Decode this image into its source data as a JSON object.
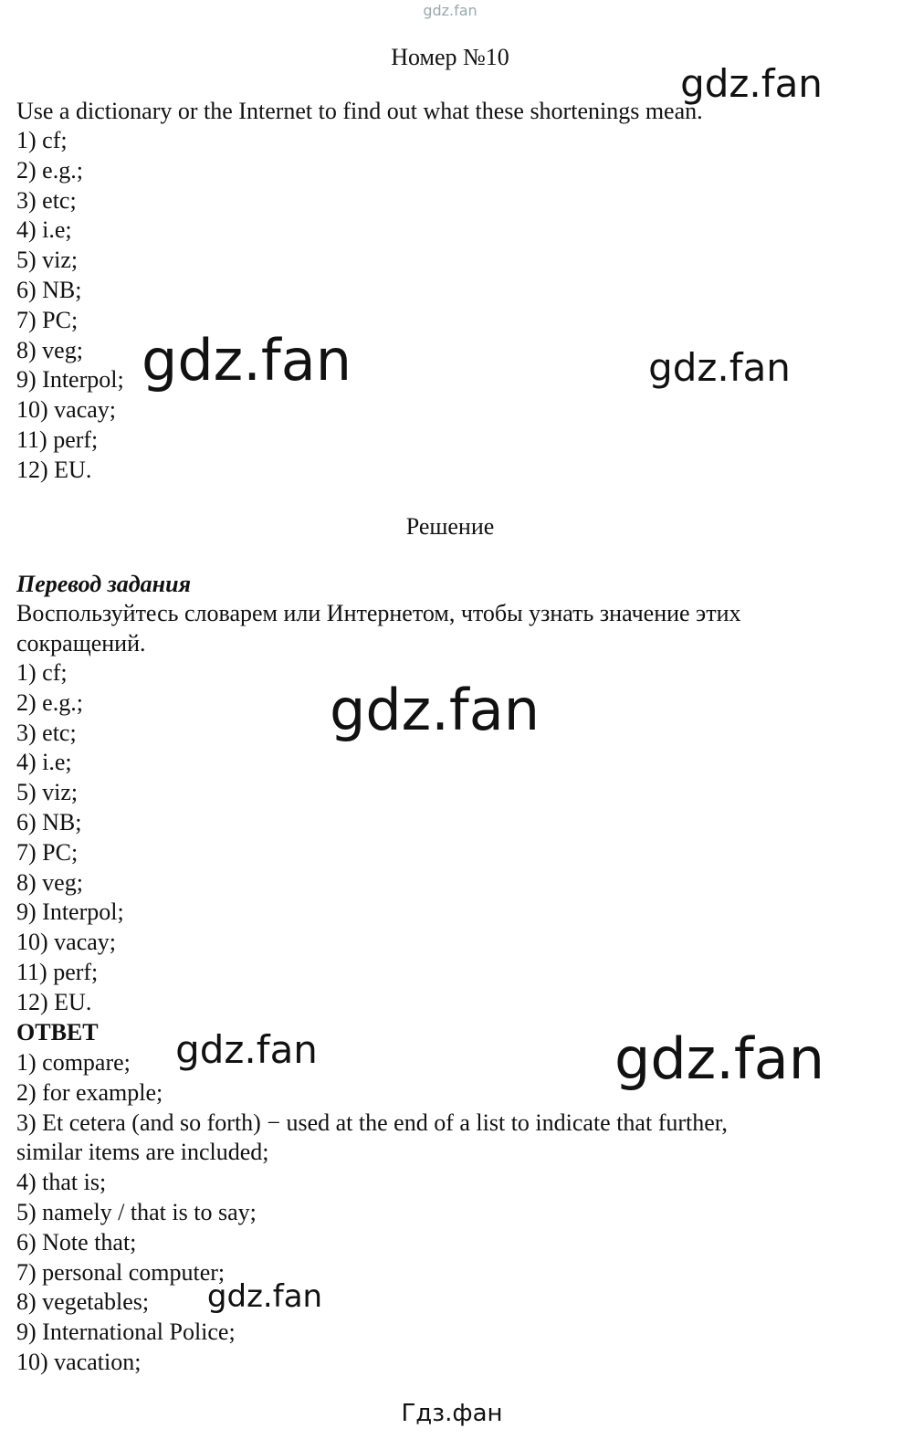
{
  "header": {
    "top_watermark": "gdz.fan",
    "title": "Номер №10"
  },
  "task": {
    "instruction": "Use a dictionary or the Internet to find out what these shortenings mean.",
    "items": [
      "1) cf;",
      "2) e.g.;",
      "3) etc;",
      "4) i.e;",
      "5) viz;",
      "6) NB;",
      "7) PC;",
      "8) veg;",
      "9) Interpol;",
      "10) vacay;",
      "11) perf;",
      "12) EU."
    ]
  },
  "solution": {
    "heading": "Решение",
    "translation_heading": "Перевод задания",
    "translation_lines": [
      "Воспользуйтесь словарем или Интернетом, чтобы узнать значение этих",
      "сокращений."
    ],
    "items": [
      "1) cf;",
      "2) e.g.;",
      "3) etc;",
      "4) i.e;",
      "5) viz;",
      "6) NB;",
      "7) PC;",
      "8) veg;",
      "9) Interpol;",
      "10) vacay;",
      "11) perf;",
      "12) EU."
    ],
    "answer_heading": "ОТВЕТ",
    "answer_lines": [
      "1) compare;",
      "2) for example;",
      "3) Et cetera (and so forth) − used at the end of a list to indicate that further,",
      "similar items are included;",
      "4) that is;",
      "5) namely / that is to say;",
      "6) Note that;",
      "7) personal computer;",
      "8) vegetables;",
      "9) International Police;",
      "10) vacation;"
    ]
  },
  "watermarks": [
    "gdz.fan",
    "gdz.fan",
    "gdz.fan",
    "gdz.fan",
    "gdz.fan",
    "gdz.fan",
    "gdz.fan"
  ],
  "footer": "Гдз.фан"
}
